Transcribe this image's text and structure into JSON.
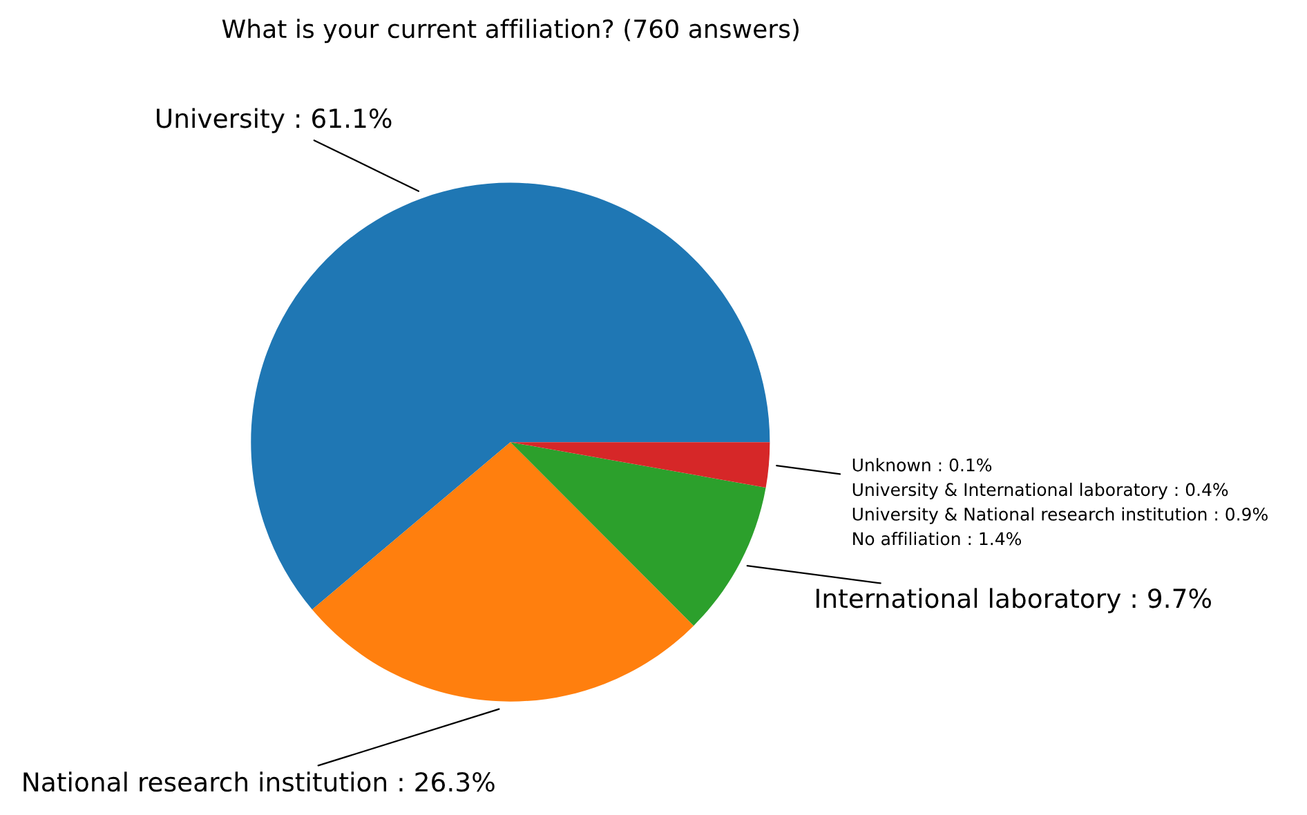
{
  "chart_data": {
    "type": "pie",
    "title": "What is your current affiliation? (760 answers)",
    "categories": [
      "University : 61.1%",
      "National research institution : 26.3%",
      "International laboratory : 9.7%",
      "Unknown : 0.1%\nUniversity & International laboratory : 0.4%\nUniversity & National research institution : 0.9%\nNo affiliation : 1.4%"
    ],
    "values": [
      61.1,
      26.3,
      9.7,
      2.8
    ],
    "colors": [
      "#1f77b4",
      "#ff7f0e",
      "#2ca02c",
      "#d62728"
    ],
    "legend": false
  }
}
